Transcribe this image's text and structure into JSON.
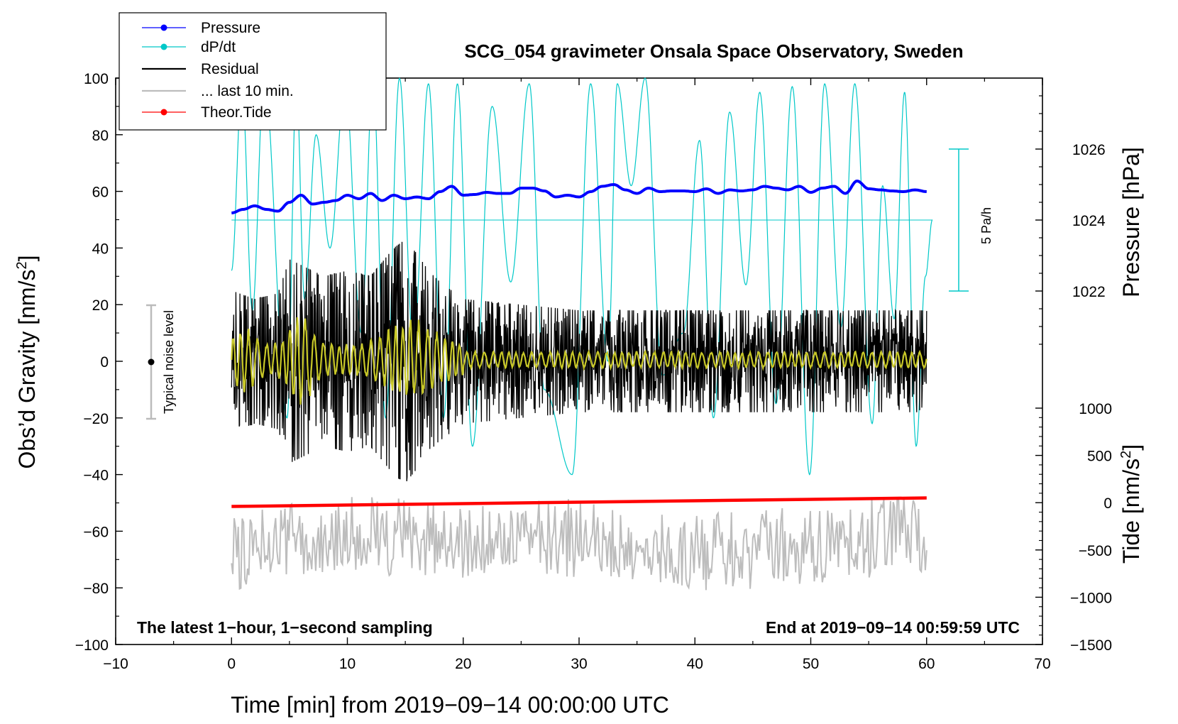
{
  "chart_data": {
    "type": "line",
    "title": "SCG_054 gravimeter Onsala Space Observatory, Sweden",
    "xlabel": "Time [min] from 2019−09−14 00:00:00 UTC",
    "ylabel_left": "Obs’d Gravity [nm/s²]",
    "ylabel_left_text": "Obs’d Gravity [nm/s",
    "ylabel_left_sup": "2",
    "ylabel_left_close": "]",
    "ylabel_right_pressure": "Pressure [hPa]",
    "ylabel_right_tide": "Tide [nm/s²]",
    "ylabel_right_tide_text": "Tide [nm/s",
    "ylabel_right_tide_sup": "2",
    "ylabel_right_tide_close": "]",
    "xlim": [
      -10,
      70
    ],
    "ylim_left": [
      -100,
      100
    ],
    "x_ticks": [
      -10,
      0,
      10,
      20,
      30,
      40,
      50,
      60,
      70
    ],
    "x_tick_labels": [
      "−10",
      "0",
      "10",
      "20",
      "30",
      "40",
      "50",
      "60",
      "70"
    ],
    "y_left_ticks": [
      100,
      80,
      60,
      40,
      20,
      0,
      -20,
      -40,
      -60,
      -80,
      -100
    ],
    "y_left_tick_labels": [
      "100",
      "80",
      "60",
      "40",
      "20",
      "0",
      "−20",
      "−40",
      "−60",
      "−80",
      "−100"
    ],
    "pressure_ticks": [
      1026,
      1024,
      1022
    ],
    "pressure_tick_labels": [
      "1026",
      "1024",
      "1022"
    ],
    "pressure_axis_range": [
      1019.5,
      1028.0
    ],
    "tide_ticks": [
      1000,
      500,
      0,
      -500,
      -1000,
      -1500
    ],
    "tide_tick_labels": [
      "1000",
      "500",
      "0",
      "−500",
      "−1000",
      "−1500"
    ],
    "tide_axis_range": [
      -1500,
      1000
    ],
    "legend_position": "top-left",
    "legend": [
      {
        "label": "Pressure",
        "color": "#0000ff",
        "marker": true
      },
      {
        "label": "dP/dt",
        "color": "#00c8c8",
        "marker": true
      },
      {
        "label": "Residual",
        "color": "#000000",
        "marker": false
      },
      {
        "label": "... last 10 min.",
        "color": "#bdbdbd",
        "marker": false
      },
      {
        "label": "Theor.Tide",
        "color": "#ff0000",
        "marker": true
      }
    ],
    "series": [
      {
        "name": "Pressure",
        "axis": "pressure",
        "color": "#0000ff",
        "x": [
          0,
          1,
          2,
          3,
          4,
          5,
          6,
          7,
          8,
          9,
          10,
          11,
          12,
          13,
          14,
          15,
          16,
          17,
          18,
          19,
          20,
          21,
          22,
          23,
          24,
          25,
          26,
          27,
          28,
          29,
          30,
          31,
          32,
          33,
          34,
          35,
          36,
          37,
          38,
          39,
          40,
          41,
          42,
          43,
          44,
          45,
          46,
          47,
          48,
          49,
          50,
          51,
          52,
          53,
          54,
          55,
          56,
          57,
          58,
          59,
          60
        ],
        "values": [
          1024.2,
          1024.3,
          1024.4,
          1024.3,
          1024.25,
          1024.5,
          1024.7,
          1024.45,
          1024.5,
          1024.55,
          1024.7,
          1024.6,
          1024.75,
          1024.55,
          1024.7,
          1024.6,
          1024.65,
          1024.6,
          1024.8,
          1024.95,
          1024.7,
          1024.72,
          1024.78,
          1024.75,
          1024.75,
          1024.9,
          1024.9,
          1024.82,
          1024.65,
          1024.7,
          1024.65,
          1024.8,
          1024.95,
          1025.0,
          1024.85,
          1024.75,
          1024.9,
          1024.8,
          1024.82,
          1024.82,
          1024.8,
          1024.88,
          1024.75,
          1024.85,
          1024.82,
          1024.85,
          1024.95,
          1024.9,
          1024.85,
          1024.95,
          1024.78,
          1024.9,
          1024.95,
          1024.75,
          1025.1,
          1024.88,
          1024.85,
          1024.82,
          1024.8,
          1024.85,
          1024.8
        ]
      },
      {
        "name": "dP/dt",
        "axis": "left",
        "color": "#00c8c8",
        "note": "oscillation between extremes over time",
        "x": [
          0,
          0.9,
          1.8,
          2.8,
          4.8,
          5.6,
          6.3,
          7.3,
          8.5,
          9.8,
          11.2,
          12.2,
          13.3,
          14.5,
          15.7,
          17.0,
          18.3,
          19.5,
          20.8,
          22.5,
          24.1,
          25.7,
          27.0,
          29.4,
          31.0,
          32.5,
          33.3,
          34.5,
          35.7,
          37.2,
          39.0,
          40.4,
          41.6,
          43.0,
          44.4,
          45.6,
          47.0,
          48.4,
          49.9,
          51.2,
          52.6,
          53.8,
          55.3,
          56.2,
          57.2,
          58.1,
          59.1,
          59.9,
          60.5
        ],
        "values": [
          32,
          98,
          18,
          100,
          -20,
          98,
          22,
          80,
          40,
          98,
          10,
          100,
          -20,
          100,
          5,
          98,
          -20,
          98,
          -30,
          90,
          28,
          98,
          -10,
          -40,
          98,
          0,
          98,
          62,
          100,
          -5,
          10,
          78,
          -20,
          88,
          27,
          95,
          -15,
          97,
          -40,
          98,
          12,
          98,
          -22,
          62,
          15,
          95,
          -30,
          30,
          50
        ]
      },
      {
        "name": "Residual",
        "axis": "left",
        "color": "#000000",
        "note": "1-second residual, amplitude envelope",
        "x": [
          0,
          2,
          4,
          5,
          6,
          8,
          10,
          12,
          14,
          15,
          16,
          17,
          18,
          20,
          25,
          30,
          35,
          40,
          45,
          50,
          55,
          60
        ],
        "values": [
          25,
          22,
          24,
          36,
          34,
          30,
          32,
          30,
          40,
          43,
          38,
          32,
          28,
          22,
          20,
          18,
          18,
          18,
          18,
          18,
          18,
          18
        ]
      },
      {
        "name": "... last 10 min.",
        "axis": "left",
        "color": "#bdbdbd",
        "note": "residual of last 10 min, shifted, y-range",
        "x": [
          0,
          10,
          20,
          30,
          40,
          50,
          60
        ],
        "values": [
          -68,
          -60,
          -65,
          -62,
          -68,
          -65,
          -60
        ],
        "range": [
          -84,
          -44
        ]
      },
      {
        "name": "Theor.Tide",
        "axis": "tide",
        "color": "#ff0000",
        "x": [
          0,
          60
        ],
        "values": [
          -40,
          50
        ]
      }
    ],
    "noise_bar": {
      "label": "Typical noise level",
      "range": [
        -20,
        20
      ],
      "center": 0
    },
    "scale_bar": {
      "label": "5 Pa/h"
    },
    "annotation_left": "The latest 1−hour, 1−second sampling",
    "annotation_right": "End at 2019−09−14 00:59:59 UTC"
  }
}
